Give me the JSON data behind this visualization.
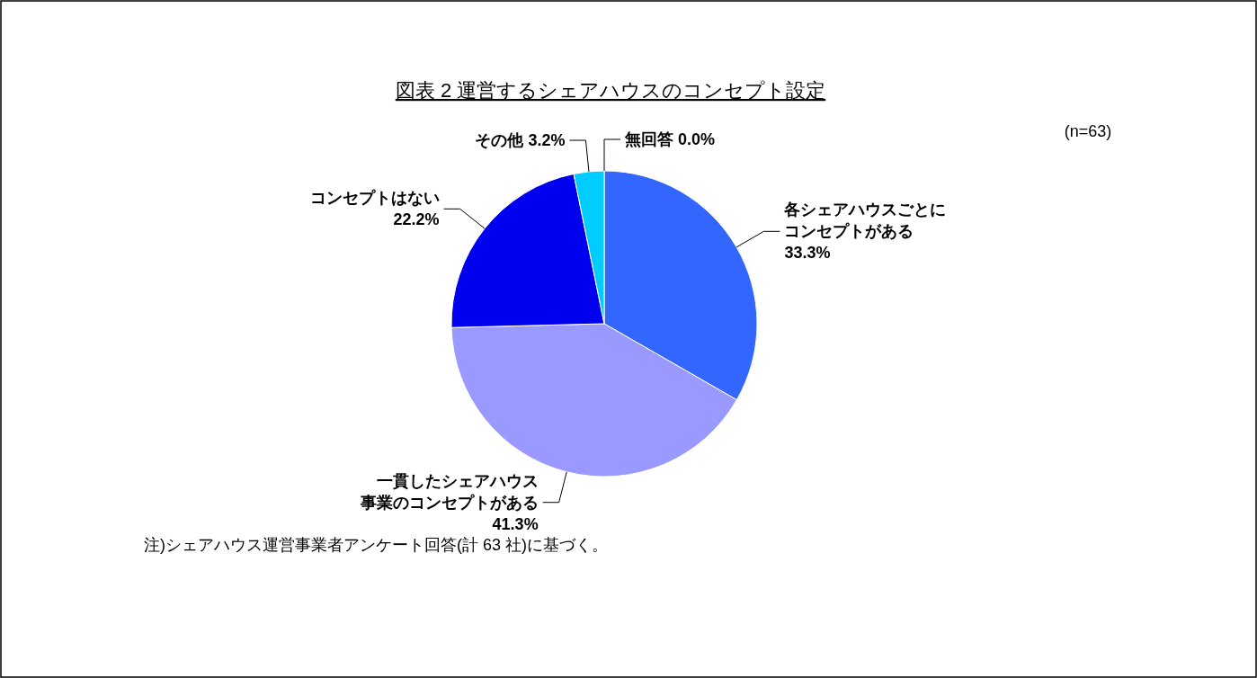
{
  "chart_data": {
    "type": "pie",
    "title": "図表 2  運営するシェアハウスのコンセプト設定",
    "categories": [
      "各シェアハウスごとにコンセプトがある",
      "一貫したシェアハウス事業のコンセプトがある",
      "コンセプトはない",
      "その他",
      "無回答"
    ],
    "values": [
      33.3,
      41.3,
      22.2,
      3.2,
      0.0
    ],
    "colors": [
      "#3366ff",
      "#9999ff",
      "#0000ee",
      "#00ccff",
      "#000000"
    ],
    "value_labels": [
      "33.3%",
      "41.3%",
      "22.2%",
      "3.2%",
      "0.0%"
    ],
    "annotations": [
      "(n=63)",
      "注)シェアハウス運営事業者アンケート回答(計 63 社)に基づく。"
    ]
  }
}
